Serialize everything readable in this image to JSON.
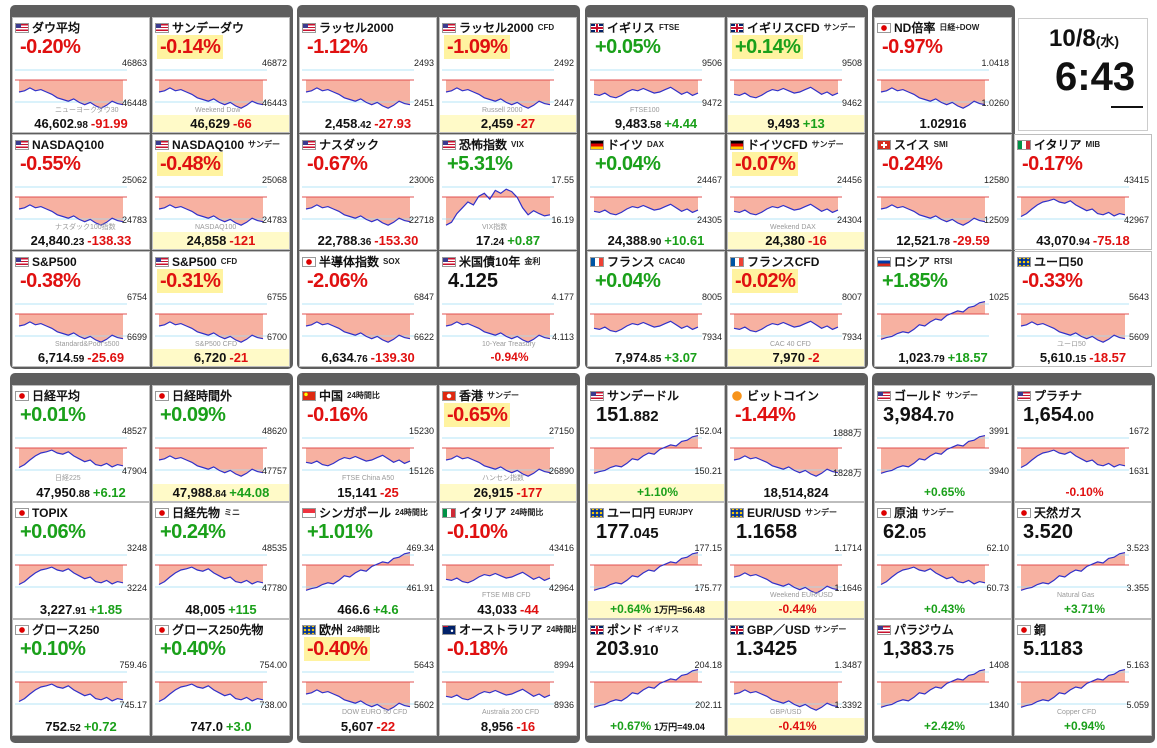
{
  "clock": {
    "date": "10/8",
    "weekday": "(水)",
    "time": "6:43"
  },
  "tiles": [
    {
      "flag": "us",
      "name": "ダウ平均",
      "sub": "",
      "change": "-0.20%",
      "dir": "down",
      "hi": "46863",
      "lo": "46448",
      "wm": "ニューヨークダウ30",
      "price": "46,602",
      "dec": ".98",
      "diff": "-91.99",
      "fdir": "down",
      "shape": "down"
    },
    {
      "flag": "us",
      "name": "サンデーダウ",
      "sub": "",
      "change": "-0.14%",
      "dir": "down",
      "hi": "46872",
      "lo": "46443",
      "wm": "Weekend Dow",
      "price": "46,629",
      "dec": "",
      "diff": "-66",
      "fdir": "down",
      "shape": "down",
      "y": true,
      "hl": true
    },
    {
      "flag": "us",
      "name": "ラッセル2000",
      "sub": "",
      "change": "-1.12%",
      "dir": "down",
      "hi": "2493",
      "lo": "2451",
      "wm": "",
      "price": "2,458",
      "dec": ".42",
      "diff": "-27.93",
      "fdir": "down",
      "shape": "down"
    },
    {
      "flag": "us",
      "name": "ラッセル2000",
      "sub": "CFD",
      "change": "-1.09%",
      "dir": "down",
      "hi": "2492",
      "lo": "2447",
      "wm": "Russell 2000",
      "price": "2,459",
      "dec": "",
      "diff": "-27",
      "fdir": "down",
      "shape": "down",
      "y": true,
      "hl": true
    },
    {
      "flag": "uk",
      "name": "イギリス",
      "sub": "FTSE",
      "change": "+0.05%",
      "dir": "up",
      "hi": "9506",
      "lo": "9472",
      "wm": "FTSE100",
      "price": "9,483",
      "dec": ".58",
      "diff": "+4.44",
      "fdir": "up",
      "shape": "flat"
    },
    {
      "flag": "uk",
      "name": "イギリスCFD",
      "sub": "サンデー",
      "change": "+0.14%",
      "dir": "up",
      "hi": "9508",
      "lo": "9462",
      "wm": "",
      "price": "9,493",
      "dec": "",
      "diff": "+13",
      "fdir": "up",
      "shape": "flat",
      "y": true,
      "hl": true
    },
    {
      "flag": "jp",
      "name": "ND倍率",
      "sub": "日経÷DOW",
      "change": "-0.97%",
      "dir": "down",
      "hi": "1.0418",
      "lo": "1.0260",
      "wm": "",
      "price": "1.02916",
      "dec": "",
      "diff": "",
      "fdir": "down",
      "shape": "down"
    },
    {
      "flag": "us",
      "name": "NASDAQ100",
      "sub": "",
      "change": "-0.55%",
      "dir": "down",
      "hi": "25062",
      "lo": "24783",
      "wm": "ナスダック100指数",
      "price": "24,840",
      "dec": ".23",
      "diff": "-138.33",
      "fdir": "down",
      "shape": "down"
    },
    {
      "flag": "us",
      "name": "NASDAQ100",
      "sub": "サンデー",
      "change": "-0.48%",
      "dir": "down",
      "hi": "25068",
      "lo": "24783",
      "wm": "NASDAQ100",
      "price": "24,858",
      "dec": "",
      "diff": "-121",
      "fdir": "down",
      "shape": "down",
      "y": true,
      "hl": true
    },
    {
      "flag": "us",
      "name": "ナスダック",
      "sub": "",
      "change": "-0.67%",
      "dir": "down",
      "hi": "23006",
      "lo": "22718",
      "wm": "",
      "price": "22,788",
      "dec": ".36",
      "diff": "-153.30",
      "fdir": "down",
      "shape": "down"
    },
    {
      "flag": "us",
      "name": "恐怖指数",
      "sub": "VIX",
      "change": "+5.31%",
      "dir": "up",
      "hi": "17.55",
      "lo": "16.19",
      "wm": "VIX指数",
      "price": "17",
      "dec": ".24",
      "diff": "+0.87",
      "fdir": "up",
      "shape": "vix"
    },
    {
      "flag": "de",
      "name": "ドイツ",
      "sub": "DAX",
      "change": "+0.04%",
      "dir": "up",
      "hi": "24467",
      "lo": "24305",
      "wm": "",
      "price": "24,388",
      "dec": ".90",
      "diff": "+10.61",
      "fdir": "up",
      "shape": "flat"
    },
    {
      "flag": "de",
      "name": "ドイツCFD",
      "sub": "サンデー",
      "change": "-0.07%",
      "dir": "down",
      "hi": "24456",
      "lo": "24304",
      "wm": "Weekend DAX",
      "price": "24,380",
      "dec": "",
      "diff": "-16",
      "fdir": "down",
      "shape": "flat",
      "y": true,
      "hl": true
    },
    {
      "flag": "ch",
      "name": "スイス",
      "sub": "SMI",
      "change": "-0.24%",
      "dir": "down",
      "hi": "12580",
      "lo": "12509",
      "wm": "",
      "price": "12,521",
      "dec": ".78",
      "diff": "-29.59",
      "fdir": "down",
      "shape": "down"
    },
    {
      "flag": "it",
      "name": "イタリア",
      "sub": "MIB",
      "change": "-0.17%",
      "dir": "down",
      "hi": "43415",
      "lo": "42967",
      "wm": "",
      "price": "43,070",
      "dec": ".94",
      "diff": "-75.18",
      "fdir": "down",
      "shape": "updown"
    },
    {
      "flag": "us",
      "name": "S&P500",
      "sub": "",
      "change": "-0.38%",
      "dir": "down",
      "hi": "6754",
      "lo": "6699",
      "wm": "Standard&Poor's500",
      "price": "6,714",
      "dec": ".59",
      "diff": "-25.69",
      "fdir": "down",
      "shape": "down"
    },
    {
      "flag": "us",
      "name": "S&P500",
      "sub": "CFD",
      "change": "-0.31%",
      "dir": "down",
      "hi": "6755",
      "lo": "6700",
      "wm": "S&P500 CFD",
      "price": "6,720",
      "dec": "",
      "diff": "-21",
      "fdir": "down",
      "shape": "down",
      "y": true,
      "hl": true
    },
    {
      "flag": "jp",
      "name": "半導体指数",
      "sub": "SOX",
      "change": "-2.06%",
      "dir": "down",
      "hi": "6847",
      "lo": "6622",
      "wm": "",
      "price": "6,634",
      "dec": ".76",
      "diff": "-139.30",
      "fdir": "down",
      "shape": "down"
    },
    {
      "flag": "us",
      "name": "米国債10年",
      "sub": "金利",
      "change": "",
      "dir": "down",
      "big": "4.125",
      "bigdec": "",
      "hi": "4.177",
      "lo": "4.113",
      "wm": "10-Year Treasury",
      "price": "",
      "dec": "",
      "diff": "-0.94%",
      "fdir": "down",
      "shape": "down",
      "pf": true
    },
    {
      "flag": "fr",
      "name": "フランス",
      "sub": "CAC40",
      "change": "+0.04%",
      "dir": "up",
      "hi": "8005",
      "lo": "7934",
      "wm": "",
      "price": "7,974",
      "dec": ".85",
      "diff": "+3.07",
      "fdir": "up",
      "shape": "flat"
    },
    {
      "flag": "fr",
      "name": "フランスCFD",
      "sub": "",
      "change": "-0.02%",
      "dir": "down",
      "hi": "8007",
      "lo": "7934",
      "wm": "CAC 40 CFD",
      "price": "7,970",
      "dec": "",
      "diff": "-2",
      "fdir": "down",
      "shape": "flat",
      "y": true,
      "hl": true
    },
    {
      "flag": "ru",
      "name": "ロシア",
      "sub": "RTSI",
      "change": "+1.85%",
      "dir": "up",
      "hi": "1025",
      "lo": "",
      "wm": "",
      "price": "1,023",
      "dec": ".79",
      "diff": "+18.57",
      "fdir": "up",
      "shape": "up"
    },
    {
      "flag": "eu",
      "name": "ユーロ50",
      "sub": "",
      "change": "-0.33%",
      "dir": "down",
      "hi": "5643",
      "lo": "5609",
      "wm": "ユーロ50",
      "price": "5,610",
      "dec": ".15",
      "diff": "-18.57",
      "fdir": "down",
      "shape": "down"
    },
    {
      "flag": "jp",
      "name": "日経平均",
      "sub": "",
      "change": "+0.01%",
      "dir": "up",
      "hi": "48527",
      "lo": "47904",
      "wm": "日経225",
      "price": "47,950",
      "dec": ".88",
      "diff": "+6.12",
      "fdir": "up",
      "shape": "updown"
    },
    {
      "flag": "jp",
      "name": "日経時間外",
      "sub": "",
      "change": "+0.09%",
      "dir": "up",
      "hi": "48620",
      "lo": "47757",
      "wm": "",
      "price": "47,988",
      "dec": ".84",
      "diff": "+44.08",
      "fdir": "up",
      "shape": "down",
      "y": true
    },
    {
      "flag": "cn",
      "name": "中国",
      "sub": "24時間比",
      "change": "-0.16%",
      "dir": "down",
      "hi": "15230",
      "lo": "15126",
      "wm": "FTSE China A50",
      "price": "15,141",
      "dec": "",
      "diff": "-25",
      "fdir": "down",
      "shape": "flat"
    },
    {
      "flag": "hk",
      "name": "香港",
      "sub": "サンデー",
      "change": "-0.65%",
      "dir": "down",
      "hi": "27150",
      "lo": "26890",
      "wm": "ハンセン指数",
      "price": "26,915",
      "dec": "",
      "diff": "-177",
      "fdir": "down",
      "shape": "down",
      "y": true,
      "hl": true
    },
    {
      "flag": "us",
      "name": "サンデードル",
      "sub": "",
      "change": "",
      "dir": "up",
      "big": "151",
      "bigdec": ".882",
      "hi": "152.04",
      "lo": "150.21",
      "wm": "",
      "price": "",
      "dec": "",
      "diff": "+1.10%",
      "fdir": "up",
      "shape": "up",
      "y": true,
      "pf": true
    },
    {
      "flag": "btc",
      "name": "ビットコイン",
      "sub": "",
      "change": "-1.44%",
      "dir": "down",
      "hi": "1888万",
      "lo": "1828万",
      "wm": "",
      "price": "18,514,824",
      "dec": "",
      "diff": "",
      "fdir": "down",
      "shape": "down"
    },
    {
      "flag": "us",
      "name": "ゴールド",
      "sub": "サンデー",
      "change": "",
      "dir": "up",
      "big": "3,984",
      "bigdec": ".70",
      "hi": "3991",
      "lo": "3940",
      "wm": "",
      "price": "",
      "dec": "",
      "diff": "+0.65%",
      "fdir": "up",
      "shape": "up",
      "pf": true
    },
    {
      "flag": "us",
      "name": "プラチナ",
      "sub": "",
      "change": "",
      "dir": "down",
      "big": "1,654",
      "bigdec": ".00",
      "hi": "1672",
      "lo": "1631",
      "wm": "",
      "price": "",
      "dec": "",
      "diff": "-0.10%",
      "fdir": "down",
      "shape": "updown",
      "pf": true
    },
    {
      "flag": "jp",
      "name": "TOPIX",
      "sub": "",
      "change": "+0.06%",
      "dir": "up",
      "hi": "3248",
      "lo": "3224",
      "wm": "",
      "price": "3,227",
      "dec": ".91",
      "diff": "+1.85",
      "fdir": "up",
      "shape": "updown"
    },
    {
      "flag": "jp",
      "name": "日経先物",
      "sub": "ミニ",
      "change": "+0.24%",
      "dir": "up",
      "hi": "48535",
      "lo": "47780",
      "wm": "",
      "price": "48,005",
      "dec": "",
      "diff": "+115",
      "fdir": "up",
      "shape": "updown"
    },
    {
      "flag": "sg",
      "name": "シンガポール",
      "sub": "24時間比",
      "change": "+1.01%",
      "dir": "up",
      "hi": "469.34",
      "lo": "461.91",
      "wm": "",
      "price": "466.6",
      "dec": "",
      "diff": "+4.6",
      "fdir": "up",
      "shape": "up"
    },
    {
      "flag": "it",
      "name": "イタリア",
      "sub": "24時間比",
      "change": "-0.10%",
      "dir": "down",
      "hi": "43416",
      "lo": "42964",
      "wm": "FTSE MIB CFD",
      "price": "43,033",
      "dec": "",
      "diff": "-44",
      "fdir": "down",
      "shape": "flat"
    },
    {
      "flag": "eu",
      "name": "ユーロ円",
      "sub": "EUR/JPY",
      "change": "",
      "dir": "up",
      "big": "177",
      "bigdec": ".045",
      "hi": "177.15",
      "lo": "175.77",
      "wm": "",
      "price": "",
      "dec": "",
      "diff": "+0.64%",
      "fdir": "up",
      "shape": "up",
      "y": true,
      "pf": true,
      "extra": "1万円=56.48"
    },
    {
      "flag": "eu",
      "name": "EUR/USD",
      "sub": "サンデー",
      "change": "",
      "dir": "down",
      "big": "1.1658",
      "bigdec": "",
      "hi": "1.1714",
      "lo": "1.1646",
      "wm": "Weekend EUR/USD",
      "price": "",
      "dec": "",
      "diff": "-0.44%",
      "fdir": "down",
      "shape": "down",
      "y": true,
      "pf": true
    },
    {
      "flag": "jp",
      "name": "原油",
      "sub": "サンデー",
      "change": "",
      "dir": "up",
      "big": "62",
      "bigdec": ".05",
      "hi": "62.10",
      "lo": "60.73",
      "wm": "",
      "price": "",
      "dec": "",
      "diff": "+0.43%",
      "fdir": "up",
      "shape": "updown",
      "pf": true
    },
    {
      "flag": "jp",
      "name": "天然ガス",
      "sub": "",
      "change": "",
      "dir": "up",
      "big": "3.520",
      "bigdec": "",
      "hi": "3.523",
      "lo": "3.355",
      "wm": "Natural Gas",
      "price": "",
      "dec": "",
      "diff": "+3.71%",
      "fdir": "up",
      "shape": "up",
      "pf": true
    },
    {
      "flag": "jp",
      "name": "グロース250",
      "sub": "",
      "change": "+0.10%",
      "dir": "up",
      "hi": "759.46",
      "lo": "745.17",
      "wm": "",
      "price": "752",
      "dec": ".52",
      "diff": "+0.72",
      "fdir": "up",
      "shape": "updown"
    },
    {
      "flag": "jp",
      "name": "グロース250先物",
      "sub": "",
      "change": "+0.40%",
      "dir": "up",
      "hi": "754.00",
      "lo": "738.00",
      "wm": "",
      "price": "747.0",
      "dec": "",
      "diff": "+3.0",
      "fdir": "up",
      "shape": "updown"
    },
    {
      "flag": "eu",
      "name": "欧州",
      "sub": "24時間比",
      "change": "-0.40%",
      "dir": "down",
      "hi": "5643",
      "lo": "5602",
      "wm": "DOW EURO 50 CFD",
      "price": "5,607",
      "dec": "",
      "diff": "-22",
      "fdir": "down",
      "shape": "down",
      "hl": true
    },
    {
      "flag": "au",
      "name": "オーストラリア",
      "sub": "24時間比",
      "change": "-0.18%",
      "dir": "down",
      "hi": "8994",
      "lo": "8936",
      "wm": "Australia 200 CFD",
      "price": "8,956",
      "dec": "",
      "diff": "-16",
      "fdir": "down",
      "shape": "flat"
    },
    {
      "flag": "uk",
      "name": "ポンド",
      "sub": "イギリス",
      "change": "",
      "dir": "up",
      "big": "203",
      "bigdec": ".910",
      "hi": "204.18",
      "lo": "202.11",
      "wm": "",
      "price": "",
      "dec": "",
      "diff": "+0.67%",
      "fdir": "up",
      "shape": "up",
      "pf": true,
      "extra": "1万円=49.04"
    },
    {
      "flag": "uk",
      "name": "GBP／USD",
      "sub": "サンデー",
      "change": "",
      "dir": "down",
      "big": "1.3425",
      "bigdec": "",
      "hi": "1.3487",
      "lo": "1.3392",
      "wm": "GBP/USD",
      "price": "",
      "dec": "",
      "diff": "-0.41%",
      "fdir": "down",
      "shape": "down",
      "y": true,
      "pf": true
    },
    {
      "flag": "us",
      "name": "パラジウム",
      "sub": "",
      "change": "",
      "dir": "up",
      "big": "1,383",
      "bigdec": ".75",
      "hi": "1408",
      "lo": "1340",
      "wm": "",
      "price": "",
      "dec": "",
      "diff": "+2.42%",
      "fdir": "up",
      "shape": "up",
      "pf": true
    },
    {
      "flag": "jp",
      "name": "銅",
      "sub": "",
      "change": "",
      "dir": "up",
      "big": "5.1183",
      "bigdec": "",
      "hi": "5.163",
      "lo": "5.059",
      "wm": "Copper CFD",
      "price": "",
      "dec": "",
      "diff": "+0.94%",
      "fdir": "up",
      "shape": "up",
      "pf": true
    }
  ]
}
